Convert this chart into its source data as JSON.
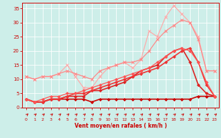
{
  "xlabel": "Vent moyen/en rafales ( km/h )",
  "bg_color": "#cdeee9",
  "grid_color": "#ffffff",
  "text_color": "#cc0000",
  "xlim": [
    -0.5,
    23.5
  ],
  "ylim": [
    0,
    37
  ],
  "yticks": [
    0,
    5,
    10,
    15,
    20,
    25,
    30,
    35
  ],
  "xticks": [
    0,
    1,
    2,
    3,
    4,
    5,
    6,
    7,
    8,
    9,
    10,
    11,
    12,
    13,
    14,
    15,
    16,
    17,
    18,
    19,
    20,
    21,
    22,
    23
  ],
  "series": [
    {
      "x": [
        0,
        1,
        2,
        3,
        4,
        5,
        6,
        7,
        8,
        9,
        10,
        11,
        12,
        13,
        14,
        15,
        16,
        17,
        18,
        19,
        20,
        21,
        22,
        23
      ],
      "y": [
        11,
        10,
        11,
        11,
        12,
        15,
        11,
        7,
        7,
        11,
        14,
        15,
        16,
        14,
        17,
        27,
        25,
        32,
        36,
        33,
        30,
        25,
        13,
        13
      ],
      "color": "#ffaaaa",
      "lw": 0.9,
      "marker": "x",
      "ms": 3.0,
      "mew": 0.8
    },
    {
      "x": [
        0,
        1,
        2,
        3,
        4,
        5,
        6,
        7,
        8,
        9,
        10,
        11,
        12,
        13,
        14,
        15,
        16,
        17,
        18,
        19,
        20,
        21,
        22,
        23
      ],
      "y": [
        11,
        10,
        11,
        11,
        12,
        13,
        12,
        11,
        10,
        13,
        14,
        15,
        16,
        16,
        17,
        20,
        24,
        27,
        29,
        31,
        30,
        24,
        13,
        13
      ],
      "color": "#ff8888",
      "lw": 0.9,
      "marker": "x",
      "ms": 3.0,
      "mew": 0.8
    },
    {
      "x": [
        0,
        1,
        2,
        3,
        4,
        5,
        6,
        7,
        8,
        9,
        10,
        11,
        12,
        13,
        14,
        15,
        16,
        17,
        18,
        19,
        20,
        21,
        22,
        23
      ],
      "y": [
        3,
        2,
        2,
        3,
        3,
        3,
        3,
        3,
        2,
        3,
        3,
        3,
        3,
        3,
        3,
        3,
        3,
        3,
        3,
        3,
        3,
        4,
        4,
        4
      ],
      "color": "#cc0000",
      "lw": 1.2,
      "marker": "D",
      "ms": 2.0,
      "mew": 0.6
    },
    {
      "x": [
        0,
        1,
        2,
        3,
        4,
        5,
        6,
        7,
        8,
        9,
        10,
        11,
        12,
        13,
        14,
        15,
        16,
        17,
        18,
        19,
        20,
        21,
        22,
        23
      ],
      "y": [
        3,
        2,
        2,
        3,
        3,
        4,
        4,
        4,
        6,
        6,
        7,
        8,
        9,
        11,
        13,
        14,
        15,
        18,
        20,
        21,
        16,
        8,
        5,
        4
      ],
      "color": "#dd2222",
      "lw": 1.2,
      "marker": "D",
      "ms": 2.0,
      "mew": 0.6
    },
    {
      "x": [
        0,
        1,
        2,
        3,
        4,
        5,
        6,
        7,
        8,
        9,
        10,
        11,
        12,
        13,
        14,
        15,
        16,
        17,
        18,
        19,
        20,
        21,
        22,
        23
      ],
      "y": [
        3,
        2,
        2,
        3,
        3,
        4,
        5,
        5,
        6,
        7,
        8,
        9,
        10,
        11,
        12,
        13,
        14,
        16,
        18,
        20,
        21,
        16,
        8,
        4
      ],
      "color": "#ee3333",
      "lw": 1.2,
      "marker": "D",
      "ms": 2.0,
      "mew": 0.6
    },
    {
      "x": [
        0,
        1,
        2,
        3,
        4,
        5,
        6,
        7,
        8,
        9,
        10,
        11,
        12,
        13,
        14,
        15,
        16,
        17,
        18,
        19,
        20,
        21,
        22,
        23
      ],
      "y": [
        3,
        2,
        3,
        4,
        4,
        5,
        5,
        6,
        7,
        8,
        9,
        10,
        11,
        12,
        13,
        14,
        16,
        18,
        20,
        21,
        20,
        16,
        9,
        4
      ],
      "color": "#ff5555",
      "lw": 0.9,
      "marker": "D",
      "ms": 2.0,
      "mew": 0.6
    }
  ]
}
